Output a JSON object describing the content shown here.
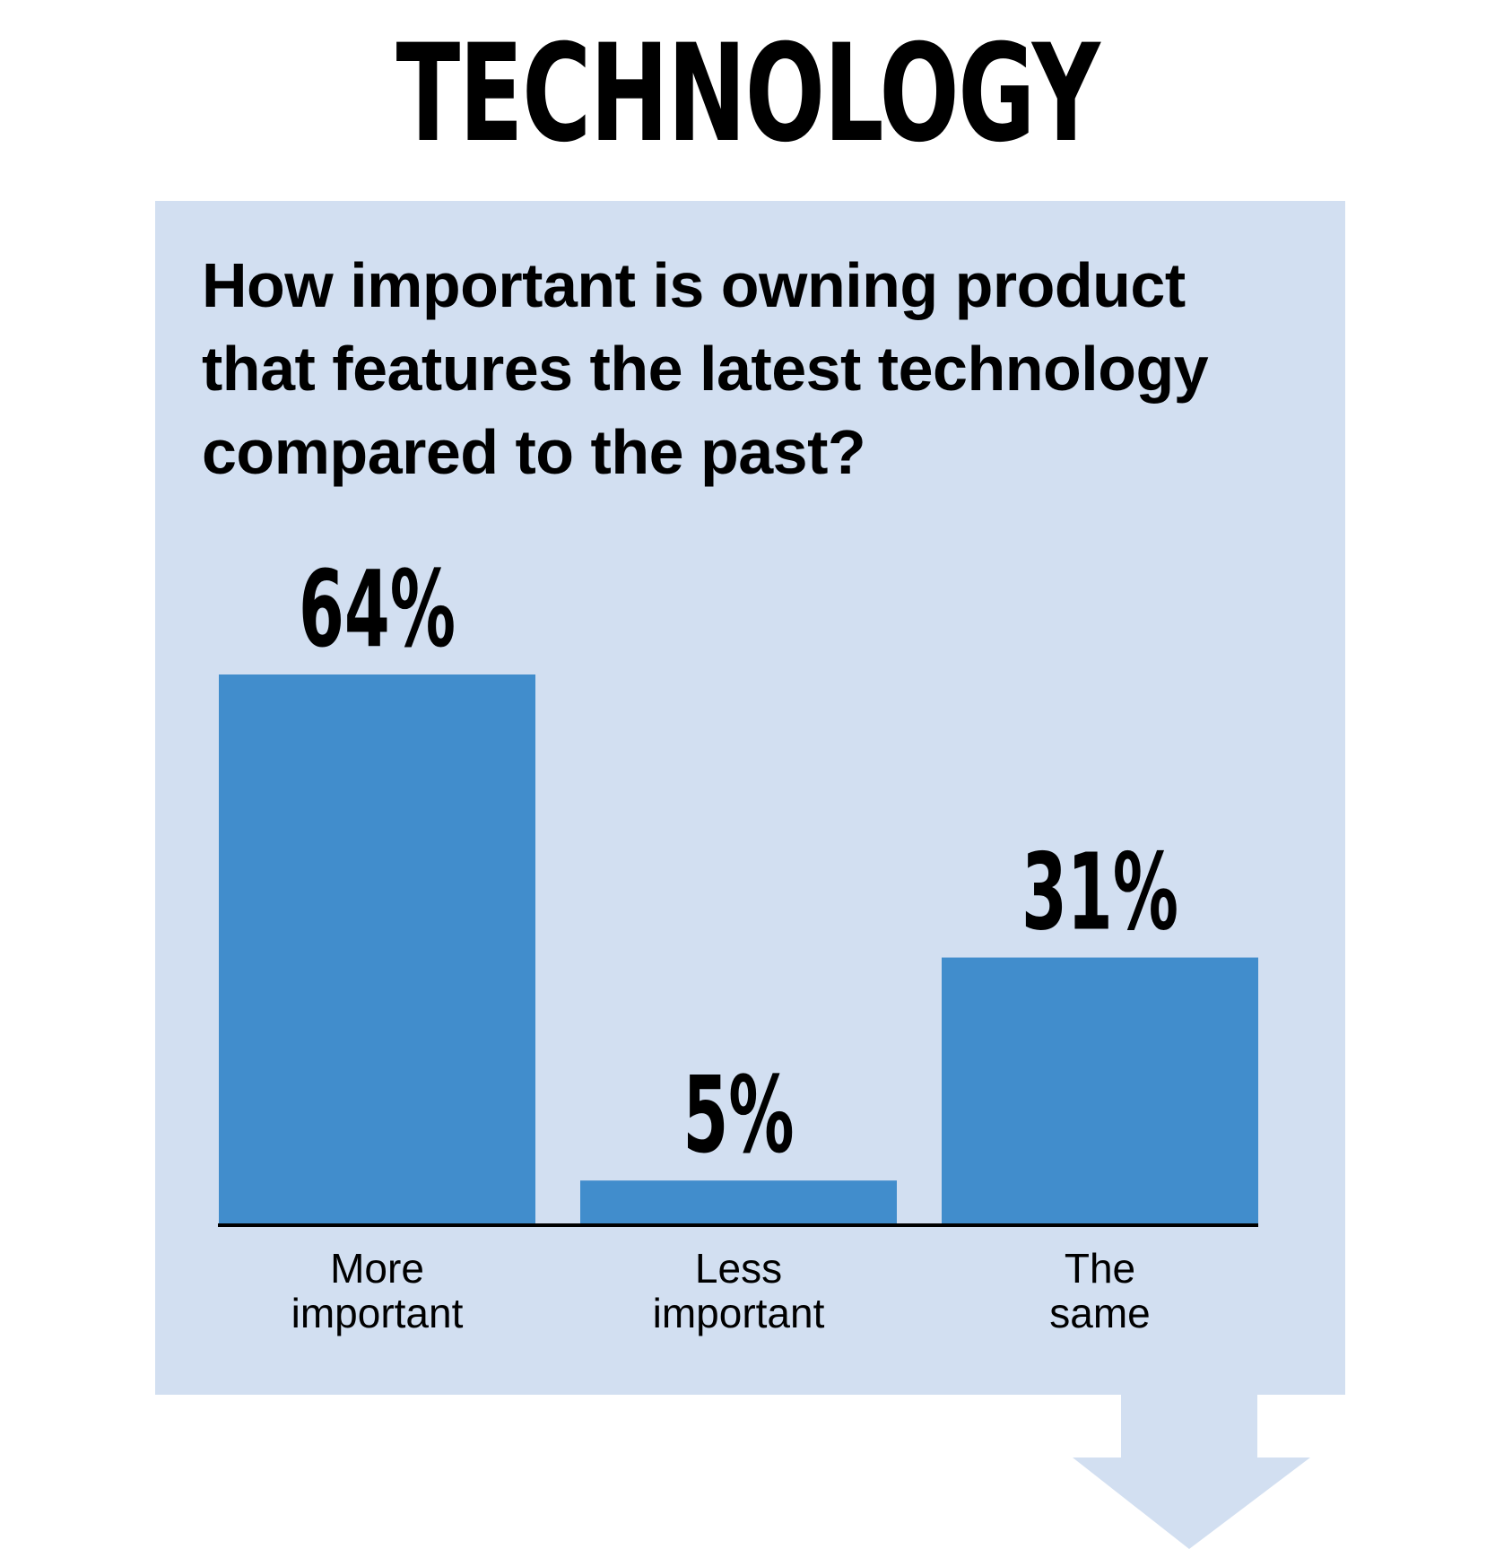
{
  "header": {
    "title": "TECHNOLOGY"
  },
  "question": {
    "lines": [
      "How important is owning product",
      "that features the latest technology",
      "compared to the past?"
    ]
  },
  "colors": {
    "panel": "#d2dff1",
    "bar": "#418dcc",
    "text": "#000000"
  },
  "chart_data": {
    "type": "bar",
    "title": "How important is owning product that features the latest technology compared to the past?",
    "categories": [
      "More important",
      "Less important",
      "The same"
    ],
    "category_label_lines": [
      [
        "More",
        "important"
      ],
      [
        "Less",
        "important"
      ],
      [
        "The",
        "same"
      ]
    ],
    "values": [
      64,
      5,
      31
    ],
    "data_labels": [
      "64%",
      "5%",
      "31%"
    ],
    "unit": "%",
    "ylim": [
      0,
      64
    ],
    "grid": false,
    "legend": "none"
  }
}
